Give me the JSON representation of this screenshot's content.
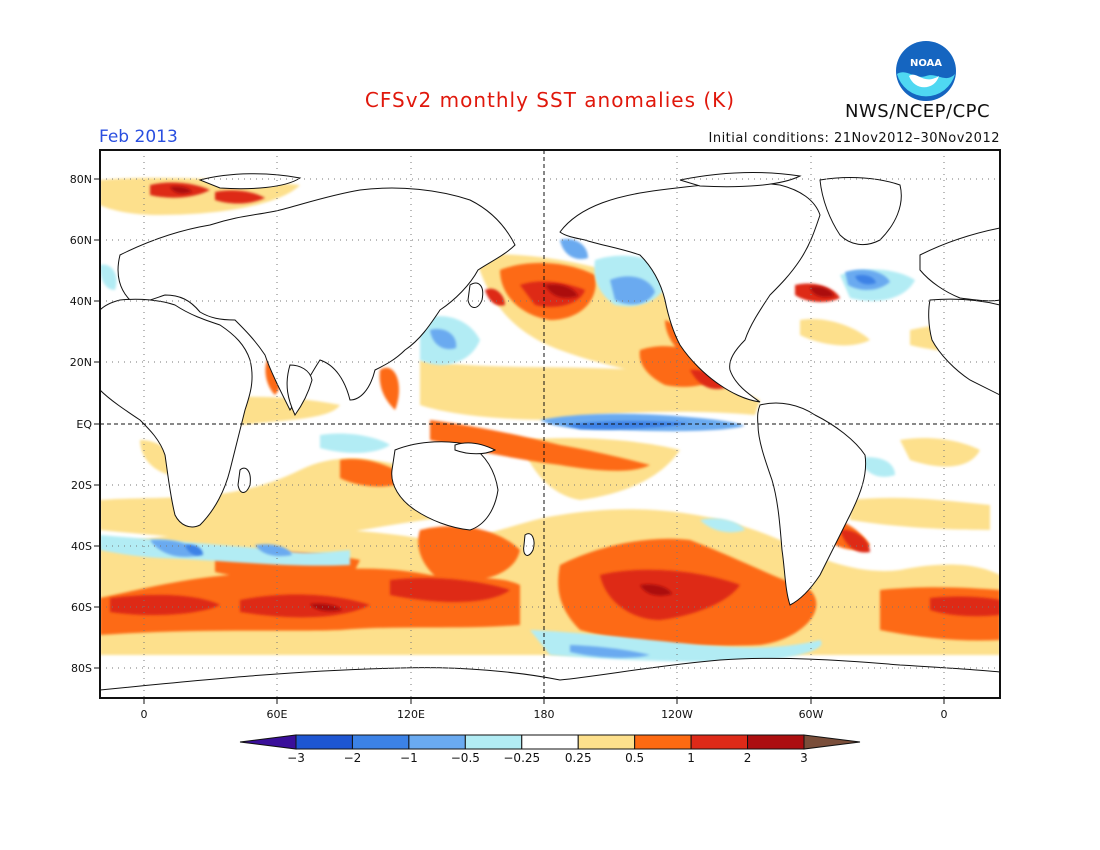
{
  "header": {
    "title": "CFSv2 monthly SST anomalies (K)",
    "month": "Feb 2013",
    "initial_conditions": "Initial conditions: 21Nov2012–30Nov2012",
    "agency": "NWS/NCEP/CPC",
    "logo_text": "NOAA"
  },
  "axes": {
    "lat_labels": [
      "80N",
      "60N",
      "40N",
      "20N",
      "EQ",
      "20S",
      "40S",
      "60S",
      "80S"
    ],
    "lon_labels": [
      "0",
      "60E",
      "120E",
      "180",
      "120W",
      "60W",
      "0"
    ]
  },
  "colorbar": {
    "levels": [
      "−3",
      "−2",
      "−1",
      "−0.5",
      "−0.25",
      "0.25",
      "0.5",
      "1",
      "2",
      "3"
    ],
    "colors": [
      "#3a0f9a",
      "#1e56d2",
      "#3c82e6",
      "#6aaaf0",
      "#b2ecf4",
      "#ffffff",
      "#fde08c",
      "#fd6a12",
      "#de2a18",
      "#ac0e10",
      "#7a4e3a"
    ]
  },
  "colors": {
    "title": "#e0180c",
    "month": "#2a4fe0",
    "noaa_blue": "#1565c0",
    "noaa_cyan": "#4fd8f2"
  }
}
